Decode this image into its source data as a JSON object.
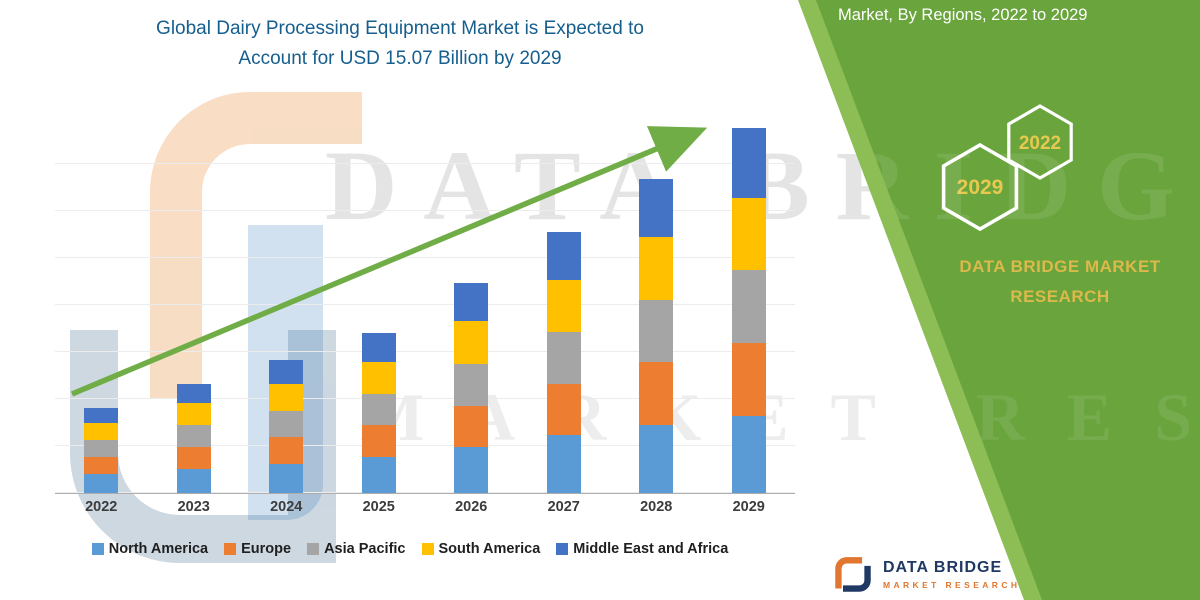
{
  "title": {
    "line1": "Global Dairy Processing Equipment Market is Expected to",
    "line2": "Account for USD 15.07 Billion by 2029"
  },
  "sidebar": {
    "heading": "Market, By Regions, 2022 to 2029",
    "hex_front": "2029",
    "hex_back": "2022",
    "brand_line1": "DATA BRIDGE MARKET",
    "brand_line2": "RESEARCH"
  },
  "watermark": {
    "line1": "DATA BRIDGE",
    "line2": "MARKET RESEARCH"
  },
  "footer_logo": {
    "name": "DATA BRIDGE",
    "sub": "MARKET RESEARCH"
  },
  "theme": {
    "green": "#69A43C",
    "green_light": "#8CBE55",
    "title_blue": "#155E8E",
    "gold": "#DCB94A",
    "navy": "#203864",
    "orange": "#E0762F"
  },
  "chart_data": {
    "type": "bar",
    "stacked": true,
    "title": "Global Dairy Processing Equipment Market is Expected to Account for USD 15.07 Billion by 2029",
    "unit": "USD Billion",
    "categories": [
      "2022",
      "2023",
      "2024",
      "2025",
      "2026",
      "2027",
      "2028",
      "2029"
    ],
    "series": [
      {
        "name": "North America",
        "color": "#5B9BD5",
        "values": [
          0.8,
          1.0,
          1.2,
          1.5,
          1.9,
          2.4,
          2.8,
          3.2
        ]
      },
      {
        "name": "Europe",
        "color": "#ED7D31",
        "values": [
          0.7,
          0.9,
          1.1,
          1.3,
          1.7,
          2.1,
          2.6,
          3.0
        ]
      },
      {
        "name": "Asia Pacific",
        "color": "#A5A5A5",
        "values": [
          0.7,
          0.9,
          1.1,
          1.3,
          1.75,
          2.15,
          2.6,
          3.0
        ]
      },
      {
        "name": "South America",
        "color": "#FFC000",
        "values": [
          0.7,
          0.9,
          1.1,
          1.3,
          1.75,
          2.15,
          2.6,
          3.0
        ]
      },
      {
        "name": "Middle East and Africa",
        "color": "#4472C4",
        "values": [
          0.6,
          0.8,
          1.0,
          1.2,
          1.6,
          2.0,
          2.4,
          2.87
        ]
      }
    ],
    "totals": [
      3.5,
      4.5,
      5.5,
      6.6,
      8.7,
      10.8,
      13.0,
      15.07
    ],
    "ylim": [
      0,
      15.5
    ],
    "xlabel": "",
    "ylabel": "",
    "grid": true,
    "legend_position": "bottom",
    "trendline": true,
    "trend_color": "#70AD47"
  }
}
